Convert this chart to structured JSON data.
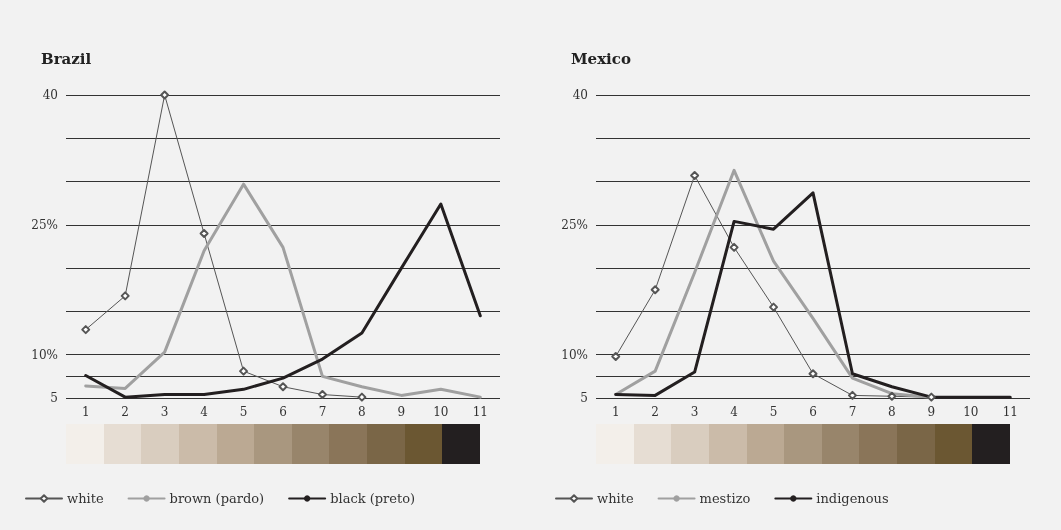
{
  "chart_data": [
    {
      "type": "line",
      "title": "Brazil",
      "categories": [
        "1",
        "2",
        "3",
        "4",
        "5",
        "6",
        "7",
        "8",
        "9",
        "10",
        "11"
      ],
      "ylim": [
        5,
        40
      ],
      "yticks": [
        {
          "value": 5,
          "label": "5"
        },
        {
          "value": 7.5,
          "label": null
        },
        {
          "value": 10,
          "label": "10%"
        },
        {
          "value": 15,
          "label": null
        },
        {
          "value": 20,
          "label": null
        },
        {
          "value": 25,
          "label": "25%"
        },
        {
          "value": 30,
          "label": null
        },
        {
          "value": 35,
          "label": null
        },
        {
          "value": 40,
          "label": "40"
        }
      ],
      "grid": "y",
      "legend": "bottom",
      "line_style": "solid",
      "series": [
        {
          "name": "white",
          "color": "#555555",
          "marker": "diamond",
          "values": [
            12.9,
            16.8,
            40,
            24,
            8.1,
            6.3,
            5.4,
            5.1,
            null,
            null,
            null
          ]
        },
        {
          "name": "brown (pardo)",
          "color": "#a0a0a0",
          "marker": "none",
          "values": [
            6.4,
            6.1,
            10.3,
            22,
            29.7,
            22.4,
            7.5,
            6.3,
            5.3,
            6.0,
            5.1
          ]
        },
        {
          "name": "black (preto)",
          "color": "#231f20",
          "marker": "none",
          "values": [
            7.6,
            5.1,
            5.4,
            5.4,
            6.0,
            7.3,
            9.5,
            12.5,
            20,
            27.4,
            14.5
          ]
        }
      ]
    },
    {
      "type": "line",
      "title": "Mexico",
      "categories": [
        "1",
        "2",
        "3",
        "4",
        "5",
        "6",
        "7",
        "8",
        "9",
        "10",
        "11"
      ],
      "ylim": [
        5,
        40
      ],
      "yticks": [
        {
          "value": 5,
          "label": "5"
        },
        {
          "value": 7.5,
          "label": null
        },
        {
          "value": 10,
          "label": "10%"
        },
        {
          "value": 15,
          "label": null
        },
        {
          "value": 20,
          "label": null
        },
        {
          "value": 25,
          "label": "25%"
        },
        {
          "value": 30,
          "label": null
        },
        {
          "value": 35,
          "label": null
        },
        {
          "value": 40,
          "label": "40"
        }
      ],
      "grid": "y",
      "legend": "bottom",
      "line_style": "solid",
      "series": [
        {
          "name": "white",
          "color": "#555555",
          "marker": "diamond",
          "values": [
            9.8,
            17.5,
            30.7,
            22.4,
            15.5,
            7.8,
            5.3,
            5.2,
            5.1,
            null,
            null
          ]
        },
        {
          "name": "mestizo",
          "color": "#a0a0a0",
          "marker": "none",
          "values": [
            5.4,
            8.1,
            19.5,
            31.3,
            20.8,
            14.2,
            7.3,
            5.5,
            5.1,
            null,
            null
          ]
        },
        {
          "name": "indigenous",
          "color": "#231f20",
          "marker": "none",
          "values": [
            5.4,
            5.3,
            8.0,
            25.4,
            24.5,
            28.7,
            7.8,
            6.3,
            5.1,
            5.1,
            5.1
          ]
        }
      ]
    }
  ]
}
